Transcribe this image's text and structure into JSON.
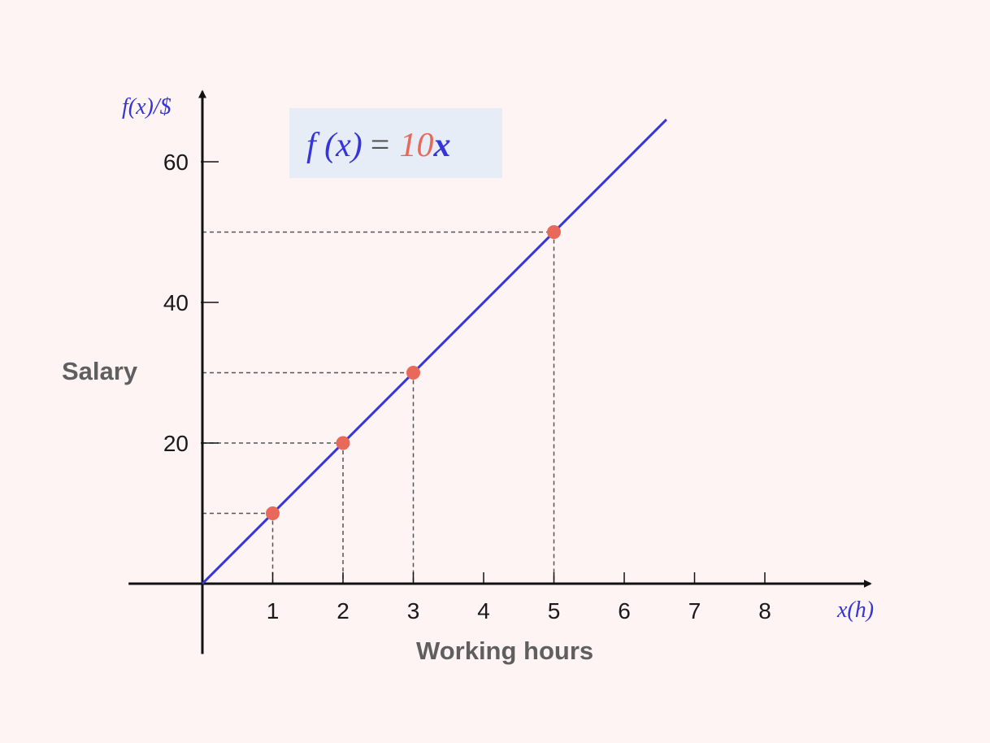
{
  "chart_data": {
    "type": "line",
    "title": "",
    "equation": {
      "lhs": "f (x)",
      "equals": "=",
      "coefficient": "10",
      "variable": "x"
    },
    "function": {
      "slope": 10,
      "intercept": 0,
      "x_end": 6.6
    },
    "xlabel": "Working hours",
    "ylabel": "Salary",
    "x_unit_label": "x(h)",
    "y_unit_label": "f(x)/$",
    "xlim": [
      -1.05,
      9.5
    ],
    "ylim": [
      -10,
      70
    ],
    "x_ticks": [
      1,
      2,
      3,
      4,
      5,
      6,
      7,
      8
    ],
    "y_ticks": [
      20,
      40,
      60
    ],
    "points": [
      {
        "x": 1,
        "y": 10
      },
      {
        "x": 2,
        "y": 20
      },
      {
        "x": 3,
        "y": 30
      },
      {
        "x": 5,
        "y": 50
      }
    ],
    "colors": {
      "line": "#3535d8",
      "point": "#e8685a",
      "axis": "#111111",
      "guide": "#555555",
      "equation_box": "#e6edf7",
      "coefficient": "#e8685a",
      "equation_text": "#3535d8",
      "equals": "#555555"
    }
  }
}
